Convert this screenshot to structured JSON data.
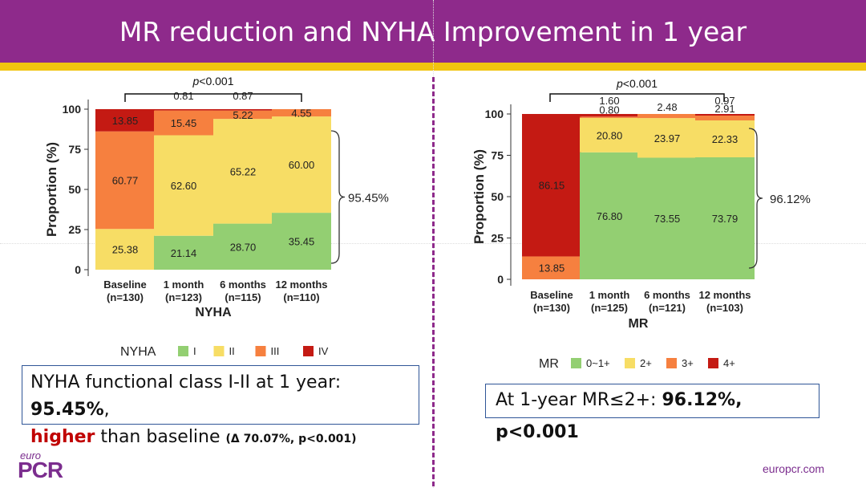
{
  "header": {
    "title": "MR reduction and NYHA Improvement in 1 year"
  },
  "colors": {
    "header_bg": "#8e2a8b",
    "accent_bar": "#f1c40f",
    "green": "#93cf72",
    "yellow": "#f7dd65",
    "orange": "#f6803f",
    "red": "#c41a13"
  },
  "chart_data": [
    {
      "type": "bar",
      "stacked": true,
      "categories": [
        "Baseline\n(n=130)",
        "1 month\n(n=123)",
        "6 months\n(n=115)",
        "12 months\n(n=110)"
      ],
      "series": [
        {
          "name": "I",
          "values": [
            0,
            21.14,
            28.7,
            35.45
          ]
        },
        {
          "name": "II",
          "values": [
            25.38,
            62.6,
            65.22,
            60.0
          ]
        },
        {
          "name": "III",
          "values": [
            60.77,
            15.45,
            5.22,
            4.55
          ]
        },
        {
          "name": "IV",
          "values": [
            13.85,
            0.81,
            0.87,
            0
          ]
        }
      ],
      "labels": [
        [
          "",
          "25.38",
          "60.77",
          "13.85"
        ],
        [
          "21.14",
          "62.60",
          "15.45",
          "0.81"
        ],
        [
          "28.70",
          "65.22",
          "5.22",
          "0.87"
        ],
        [
          "35.45",
          "60.00",
          "4.55",
          ""
        ]
      ],
      "xlabel": "NYHA",
      "ylabel": "Proportion (%)",
      "ylim": [
        0,
        100
      ],
      "yticks": [
        "0",
        "25",
        "50",
        "75",
        "100"
      ],
      "legend_title": "NYHA",
      "legend_position": "bottom",
      "annotation": "p<0.001",
      "bracket_label": "95.45%"
    },
    {
      "type": "bar",
      "stacked": true,
      "categories": [
        "Baseline\n(n=130)",
        "1 month\n(n=125)",
        "6 months\n(n=121)",
        "12 months\n(n=103)"
      ],
      "series": [
        {
          "name": "0~1+",
          "values": [
            0,
            76.8,
            73.55,
            73.79
          ]
        },
        {
          "name": "2+",
          "values": [
            0,
            20.8,
            23.97,
            22.33
          ]
        },
        {
          "name": "3+",
          "values": [
            13.85,
            0.8,
            2.48,
            2.91
          ]
        },
        {
          "name": "4+",
          "values": [
            86.15,
            1.6,
            0,
            0.97
          ]
        }
      ],
      "labels": [
        [
          "",
          "",
          "13.85",
          "86.15"
        ],
        [
          "76.80",
          "20.80",
          "0.80",
          "1.60"
        ],
        [
          "73.55",
          "23.97",
          "2.48",
          ""
        ],
        [
          "73.79",
          "22.33",
          "2.91",
          "0.97"
        ]
      ],
      "xlabel": "MR",
      "ylabel": "Proportion (%)",
      "ylim": [
        0,
        100
      ],
      "yticks": [
        "0",
        "25",
        "50",
        "75",
        "100"
      ],
      "legend_title": "MR",
      "legend_position": "bottom",
      "annotation": "p<0.001",
      "bracket_label": "96.12%"
    }
  ],
  "callouts": {
    "left": {
      "line1_text": "NYHA functional class I-II at 1 year: ",
      "line1_value": "95.45%",
      "line1_end": ",",
      "line2_highlight": "higher",
      "line2_text": " than baseline ",
      "line2_small": "(Δ 70.07%, p<0.001)"
    },
    "right": {
      "text": "At 1-year MR≤2+: ",
      "value": "96.12%, p<0.001"
    }
  },
  "logo": {
    "small": "euro",
    "large": "PCR"
  },
  "footer": {
    "url": "europcr.com"
  }
}
